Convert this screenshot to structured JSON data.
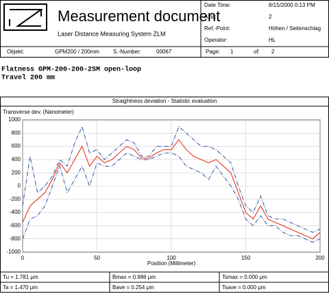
{
  "header": {
    "title": "Measurement document",
    "subtitle": "Laser Distance Measuring System ZLM",
    "info": [
      {
        "label": "Date Time:",
        "value": "8/15/2000   0:13 PM"
      },
      {
        "label": "Axis:",
        "value": "2"
      },
      {
        "label": "Ref.-Point:",
        "value": "Höhen / Seitenschlag"
      },
      {
        "label": "Operator:",
        "value": "HL"
      }
    ],
    "object_label": "Objekt:",
    "object": "GPM200 / 200mm",
    "serial_label": "S.-Number:",
    "serial": "00067",
    "page_label": "Page:",
    "page": "1",
    "of_label": "of:",
    "of": "2"
  },
  "description": [
    "Flatness GPM-200-200-2SM open-loop",
    "Travel 200 mm"
  ],
  "chart_data": {
    "type": "line",
    "title": "Straightness deviation - Statistic evaluation",
    "ylabel": "Transverse dev. (Nanometer)",
    "xlabel": "Position (Millimeter)",
    "x": [
      0,
      5,
      10,
      15,
      20,
      25,
      30,
      35,
      40,
      45,
      50,
      55,
      60,
      65,
      70,
      75,
      80,
      85,
      90,
      95,
      100,
      105,
      110,
      115,
      120,
      125,
      130,
      135,
      140,
      145,
      150,
      155,
      160,
      165,
      170,
      175,
      180,
      185,
      190,
      195,
      200
    ],
    "series": [
      {
        "color": "#3a5ea8",
        "line_style": "dashdot",
        "values": [
          -300,
          450,
          -100,
          0,
          150,
          400,
          300,
          650,
          900,
          500,
          550,
          400,
          500,
          600,
          700,
          650,
          450,
          450,
          600,
          600,
          600,
          900,
          800,
          700,
          600,
          600,
          550,
          450,
          350,
          0,
          -300,
          -400,
          -150,
          -450,
          -500,
          -500,
          -550,
          -600,
          -650,
          -700,
          -650
        ]
      },
      {
        "color": "#3a5ea8",
        "line_style": "dashdot",
        "values": [
          -800,
          -500,
          -450,
          -300,
          0,
          300,
          -100,
          100,
          300,
          0,
          350,
          300,
          300,
          400,
          500,
          450,
          400,
          400,
          450,
          500,
          500,
          450,
          300,
          250,
          200,
          100,
          300,
          150,
          0,
          -200,
          -500,
          -600,
          -450,
          -600,
          -600,
          -700,
          -750,
          -750,
          -800,
          -850,
          -800
        ]
      },
      {
        "color": "#e8321e",
        "line_style": "solid",
        "values": [
          -550,
          -300,
          -200,
          -100,
          100,
          350,
          200,
          400,
          600,
          300,
          450,
          350,
          400,
          500,
          600,
          550,
          420,
          420,
          500,
          550,
          550,
          700,
          550,
          450,
          400,
          350,
          400,
          300,
          200,
          -100,
          -400,
          -500,
          -300,
          -500,
          -550,
          -600,
          -650,
          -700,
          -750,
          -800,
          -700
        ]
      }
    ],
    "xlim": [
      0,
      200
    ],
    "xticks": [
      0,
      50,
      100,
      150,
      200
    ],
    "ylim": [
      -1000,
      1000
    ],
    "yticks": [
      -1000,
      -800,
      -600,
      -400,
      -200,
      0,
      200,
      400,
      600,
      800,
      1000
    ],
    "grid": true
  },
  "stats": [
    [
      "Tu = 1.781 μm",
      "Bmax = 0.986 μm",
      "Tsmax = 0.000 μm"
    ],
    [
      "Ta = 1.470 μm",
      "Bave = 0.254 μm",
      "Tsave = 0.000 μm"
    ]
  ]
}
